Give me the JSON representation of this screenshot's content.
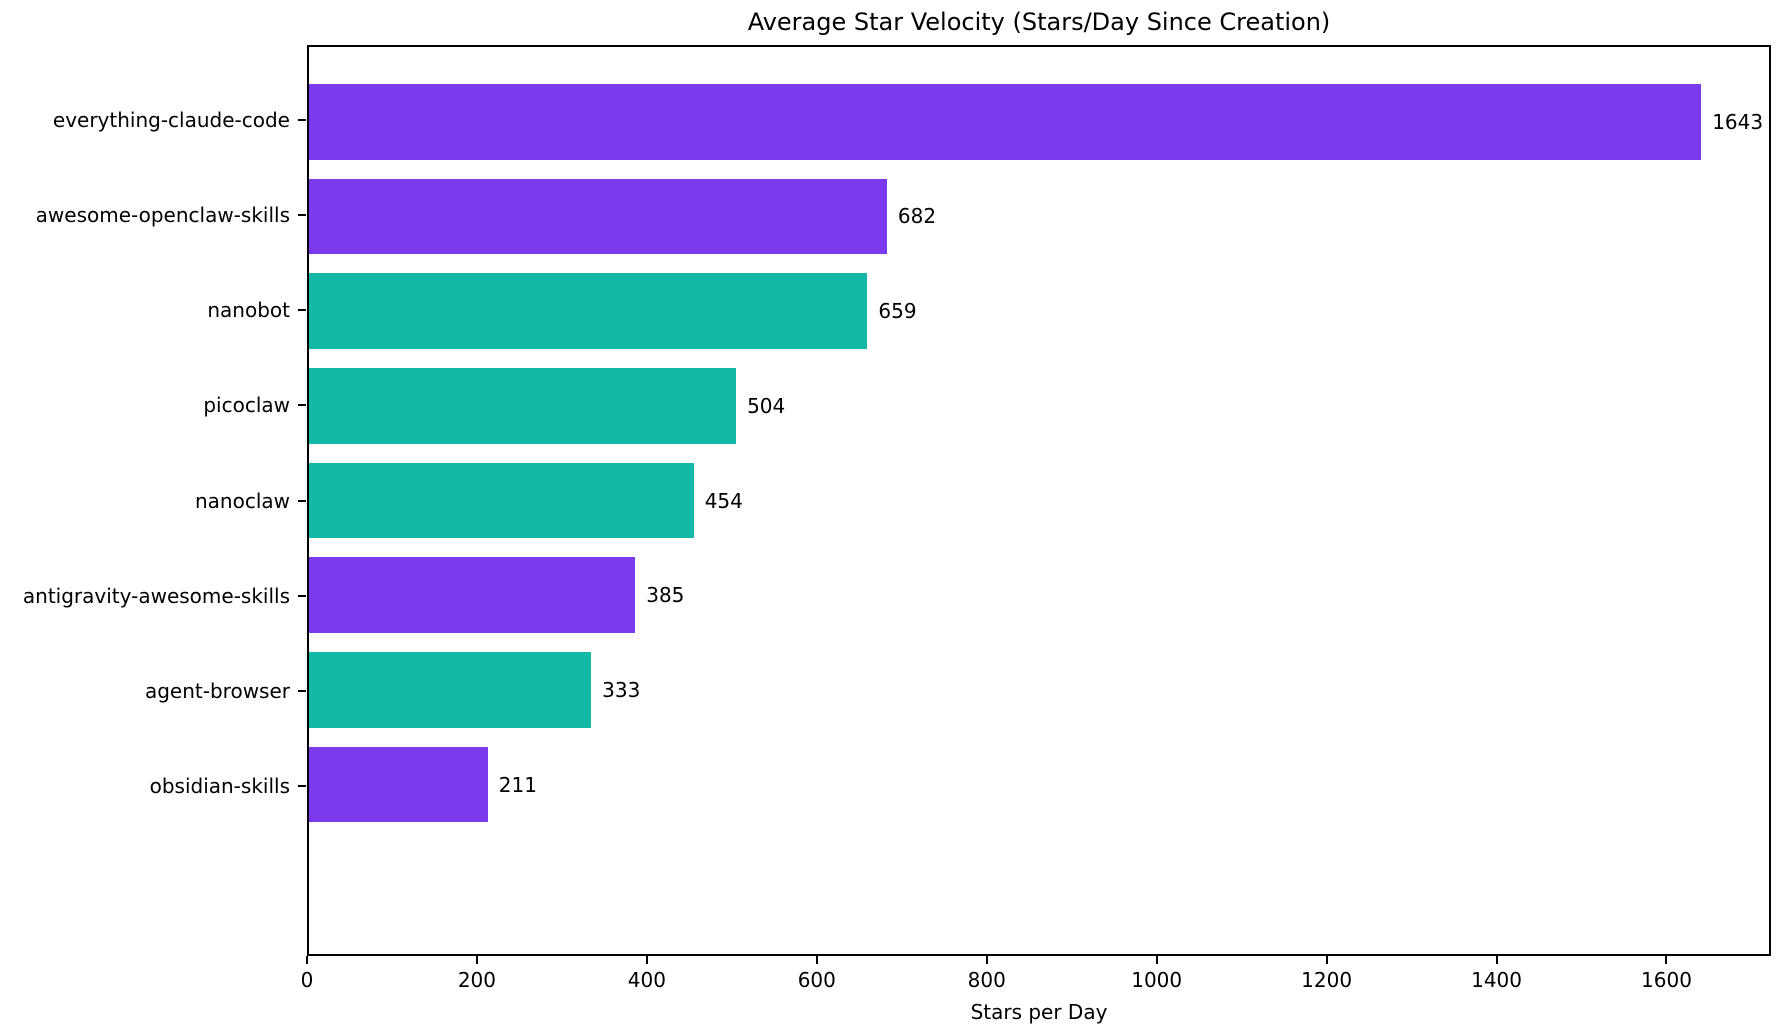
{
  "chart_data": {
    "type": "bar",
    "orientation": "horizontal",
    "title": "Average Star Velocity (Stars/Day Since Creation)",
    "xlabel": "Stars per Day",
    "ylabel": "",
    "categories": [
      "everything-claude-code",
      "awesome-openclaw-skills",
      "nanobot",
      "picoclaw",
      "nanoclaw",
      "antigravity-awesome-skills",
      "agent-browser",
      "obsidian-skills"
    ],
    "values": [
      1643,
      682,
      659,
      504,
      454,
      385,
      333,
      211
    ],
    "value_labels": [
      "1643",
      "682",
      "659",
      "504",
      "454",
      "385",
      "333",
      "211"
    ],
    "bar_colors": [
      "#7c3aed",
      "#7c3aed",
      "#14b8a6",
      "#14b8a6",
      "#14b8a6",
      "#7c3aed",
      "#14b8a6",
      "#7c3aed"
    ],
    "colors": {
      "purple": "#7c3aed",
      "teal": "#14b8a6",
      "text": "#000000",
      "spine": "#000000",
      "background": "#ffffff"
    },
    "xlim": [
      0,
      1723
    ],
    "xticks": [
      0,
      200,
      400,
      600,
      800,
      1000,
      1200,
      1400,
      1600
    ],
    "xtick_labels": [
      "0",
      "200",
      "400",
      "600",
      "800",
      "1000",
      "1200",
      "1400",
      "1600"
    ],
    "grid": false,
    "legend": "none"
  }
}
